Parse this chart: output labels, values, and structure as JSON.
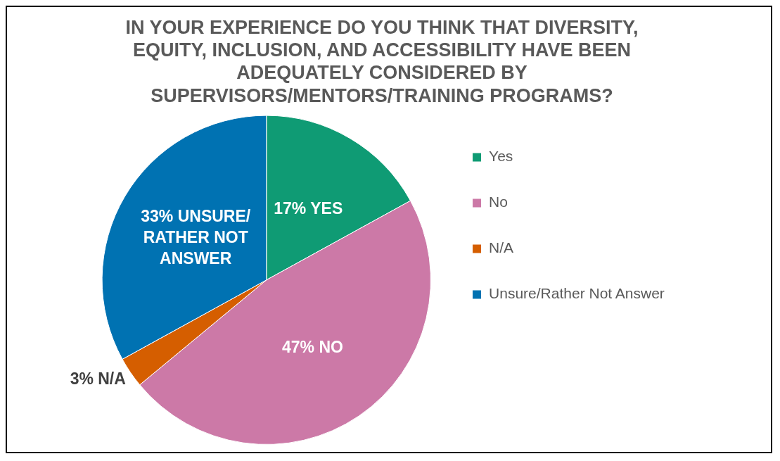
{
  "chart_data": {
    "type": "pie",
    "title": "IN YOUR EXPERIENCE DO YOU THINK THAT DIVERSITY, EQUITY, INCLUSION, AND ACCESSIBILITY HAVE BEEN ADEQUATELY CONSIDERED BY SUPERVISORS/MENTORS/TRAINING PROGRAMS?",
    "categories": [
      "Yes",
      "No",
      "N/A",
      "Unsure/Rather Not Answer"
    ],
    "values": [
      17,
      47,
      3,
      33
    ],
    "colors": [
      "#0f9b74",
      "#cc79a7",
      "#d55e00",
      "#0072b2"
    ],
    "value_labels": [
      "17% YES",
      "47% NO",
      "3% N/A",
      "33% UNSURE/ RATHER NOT ANSWER"
    ],
    "legend": "right"
  }
}
